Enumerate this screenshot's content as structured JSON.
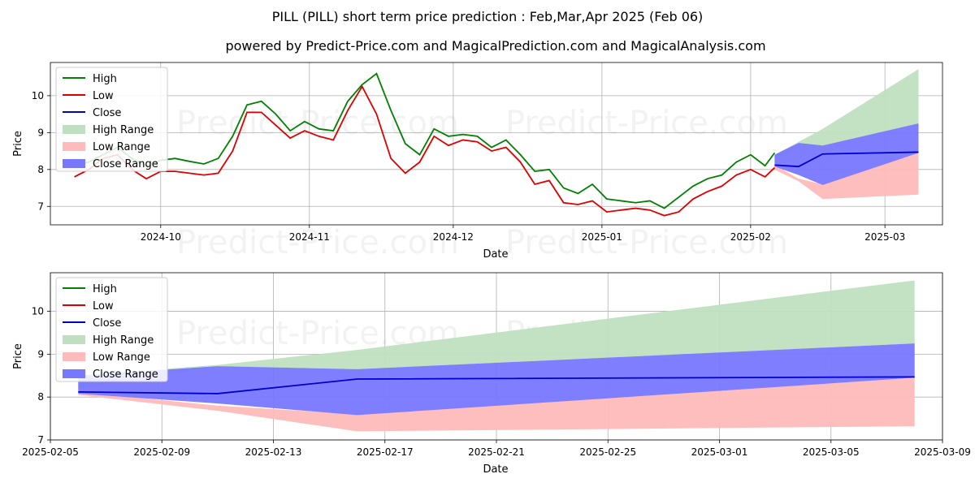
{
  "title": "PILL (PILL) short term price prediction : Feb,Mar,Apr 2025 (Feb 06)",
  "subtitle": "powered by Predict-Price.com and MagicalPrediction.com and MagicalAnalysis.com",
  "watermark": "Predict-Price.com",
  "colors": {
    "high": "#008000",
    "low": "#dd0000",
    "close": "#0000cc",
    "high_range": "#c0dfc0",
    "low_range": "#ffbbbb",
    "close_range": "#7777ff"
  },
  "chart_data": [
    {
      "type": "line",
      "xlabel": "Date",
      "ylabel": "Price",
      "xlim": [
        "2024-09-08",
        "2025-03-13"
      ],
      "ylim": [
        6.5,
        10.9
      ],
      "x_ticks": [
        "2024-10",
        "2024-11",
        "2024-12",
        "2025-01",
        "2025-02",
        "2025-03"
      ],
      "y_ticks": [
        7,
        8,
        9,
        10
      ],
      "grid": true,
      "legend": "top-left",
      "legend_entries": [
        "High",
        "Low",
        "Close",
        "High Range",
        "Low Range",
        "Close Range"
      ],
      "history": {
        "dates": [
          "2024-09-13",
          "2024-09-16",
          "2024-09-19",
          "2024-09-22",
          "2024-09-25",
          "2024-09-28",
          "2024-10-01",
          "2024-10-04",
          "2024-10-07",
          "2024-10-10",
          "2024-10-13",
          "2024-10-16",
          "2024-10-19",
          "2024-10-22",
          "2024-10-25",
          "2024-10-28",
          "2024-10-31",
          "2024-11-03",
          "2024-11-06",
          "2024-11-09",
          "2024-11-12",
          "2024-11-15",
          "2024-11-18",
          "2024-11-21",
          "2024-11-24",
          "2024-11-27",
          "2024-11-30",
          "2024-12-03",
          "2024-12-06",
          "2024-12-09",
          "2024-12-12",
          "2024-12-15",
          "2024-12-18",
          "2024-12-21",
          "2024-12-24",
          "2024-12-27",
          "2024-12-30",
          "2025-01-02",
          "2025-01-05",
          "2025-01-08",
          "2025-01-11",
          "2025-01-14",
          "2025-01-17",
          "2025-01-20",
          "2025-01-23",
          "2025-01-26",
          "2025-01-29",
          "2025-02-01",
          "2025-02-04",
          "2025-02-06"
        ],
        "high": [
          8.1,
          8.2,
          8.4,
          8.6,
          8.3,
          8.1,
          8.25,
          8.3,
          8.22,
          8.15,
          8.3,
          8.9,
          9.75,
          9.85,
          9.5,
          9.05,
          9.3,
          9.1,
          9.05,
          9.85,
          10.3,
          10.6,
          9.6,
          8.7,
          8.4,
          9.1,
          8.9,
          8.95,
          8.9,
          8.6,
          8.8,
          8.4,
          7.95,
          8.0,
          7.5,
          7.35,
          7.6,
          7.2,
          7.15,
          7.1,
          7.15,
          6.95,
          7.25,
          7.55,
          7.75,
          7.85,
          8.2,
          8.4,
          8.1,
          8.45
        ],
        "low": [
          7.8,
          8.0,
          8.3,
          8.4,
          8.0,
          7.75,
          7.95,
          7.95,
          7.9,
          7.85,
          7.9,
          8.5,
          9.55,
          9.55,
          9.2,
          8.85,
          9.05,
          8.9,
          8.8,
          9.6,
          10.25,
          9.5,
          8.3,
          7.9,
          8.2,
          8.9,
          8.65,
          8.8,
          8.75,
          8.5,
          8.6,
          8.2,
          7.6,
          7.7,
          7.1,
          7.05,
          7.15,
          6.85,
          6.9,
          6.95,
          6.9,
          6.75,
          6.85,
          7.2,
          7.4,
          7.55,
          7.85,
          8.0,
          7.8,
          8.05
        ],
        "close": []
      },
      "forecast": {
        "dates": [
          "2025-02-06",
          "2025-02-11",
          "2025-02-16",
          "2025-03-08"
        ],
        "high": [],
        "low": [],
        "close": [
          8.12,
          8.08,
          8.42,
          8.47
        ],
        "high_range": [
          [
            8.18,
            8.4
          ],
          [
            8.68,
            8.75
          ],
          [
            8.65,
            9.1
          ],
          [
            9.25,
            10.72
          ]
        ],
        "low_range": [
          [
            8.12,
            8.0
          ],
          [
            7.68,
            7.75
          ],
          [
            7.2,
            7.6
          ],
          [
            7.32,
            8.45
          ]
        ],
        "close_range": [
          [
            8.08,
            8.4
          ],
          [
            7.85,
            8.72
          ],
          [
            7.58,
            8.65
          ],
          [
            8.45,
            9.25
          ]
        ]
      }
    },
    {
      "type": "line",
      "xlabel": "Date",
      "ylabel": "Price",
      "xlim": [
        "2025-02-05",
        "2025-03-09"
      ],
      "ylim": [
        7,
        10.9
      ],
      "x_ticks": [
        "2025-02-05",
        "2025-02-09",
        "2025-02-13",
        "2025-02-17",
        "2025-02-21",
        "2025-02-25",
        "2025-03-01",
        "2025-03-05",
        "2025-03-09"
      ],
      "y_ticks": [
        7,
        8,
        9,
        10
      ],
      "grid": true,
      "legend": "top-left",
      "legend_entries": [
        "High",
        "Low",
        "Close",
        "High Range",
        "Low Range",
        "Close Range"
      ],
      "forecast": {
        "dates": [
          "2025-02-06",
          "2025-02-11",
          "2025-02-16",
          "2025-03-08"
        ],
        "close": [
          8.12,
          8.08,
          8.42,
          8.47
        ],
        "high_range": [
          [
            8.2,
            8.5
          ],
          [
            8.72,
            8.75
          ],
          [
            8.65,
            9.1
          ],
          [
            9.25,
            10.72
          ]
        ],
        "low_range": [
          [
            8.12,
            8.05
          ],
          [
            7.68,
            7.8
          ],
          [
            7.2,
            7.6
          ],
          [
            7.32,
            8.45
          ]
        ],
        "close_range": [
          [
            8.08,
            8.5
          ],
          [
            7.85,
            8.72
          ],
          [
            7.58,
            8.65
          ],
          [
            8.45,
            9.25
          ]
        ]
      }
    }
  ]
}
